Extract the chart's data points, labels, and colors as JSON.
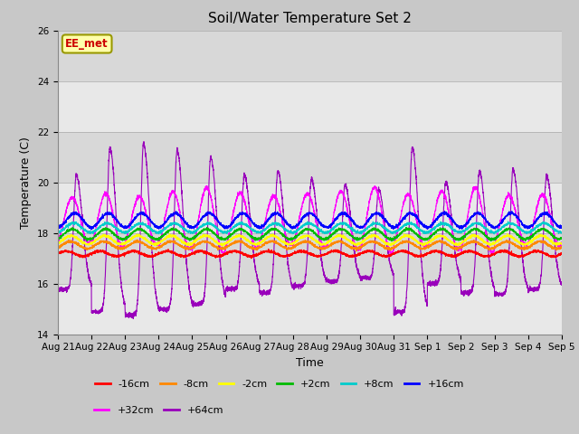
{
  "title": "Soil/Water Temperature Set 2",
  "xlabel": "Time",
  "ylabel": "Temperature (C)",
  "ylim": [
    14,
    26
  ],
  "yticks": [
    14,
    16,
    18,
    20,
    22,
    24,
    26
  ],
  "n_days": 15,
  "bg_color": "#c8c8c8",
  "plot_bg_color": "#d8d8d8",
  "white_band_color": "#e8e8e8",
  "watermark": "EE_met",
  "xtick_labels": [
    "Aug 21",
    "Aug 22",
    "Aug 23",
    "Aug 24",
    "Aug 25",
    "Aug 26",
    "Aug 27",
    "Aug 28",
    "Aug 29",
    "Aug 30",
    "Aug 31",
    "Sep 1",
    "Sep 2",
    "Sep 3",
    "Sep 4",
    "Sep 5"
  ],
  "series_colors": {
    "m16cm": "#ff0000",
    "m8cm": "#ff8800",
    "m2cm": "#ffff00",
    "p2cm": "#00bb00",
    "p8cm": "#00cccc",
    "p16cm": "#0000ff",
    "p32cm": "#ff00ff",
    "p64cm": "#9900bb"
  },
  "legend_entries": [
    {
      "label": "-16cm",
      "color": "#ff0000"
    },
    {
      "label": "-8cm",
      "color": "#ff8800"
    },
    {
      "label": "-2cm",
      "color": "#ffff00"
    },
    {
      "label": "+2cm",
      "color": "#00bb00"
    },
    {
      "label": "+8cm",
      "color": "#00cccc"
    },
    {
      "label": "+16cm",
      "color": "#0000ff"
    },
    {
      "label": "+32cm",
      "color": "#ff00ff"
    },
    {
      "label": "+64cm",
      "color": "#9900bb"
    }
  ],
  "title_fontsize": 11,
  "axis_label_fontsize": 9,
  "tick_fontsize": 7.5,
  "legend_fontsize": 8,
  "line_width": 0.8,
  "watermark_facecolor": "#ffffaa",
  "watermark_edgecolor": "#999900",
  "watermark_textcolor": "#cc0000"
}
